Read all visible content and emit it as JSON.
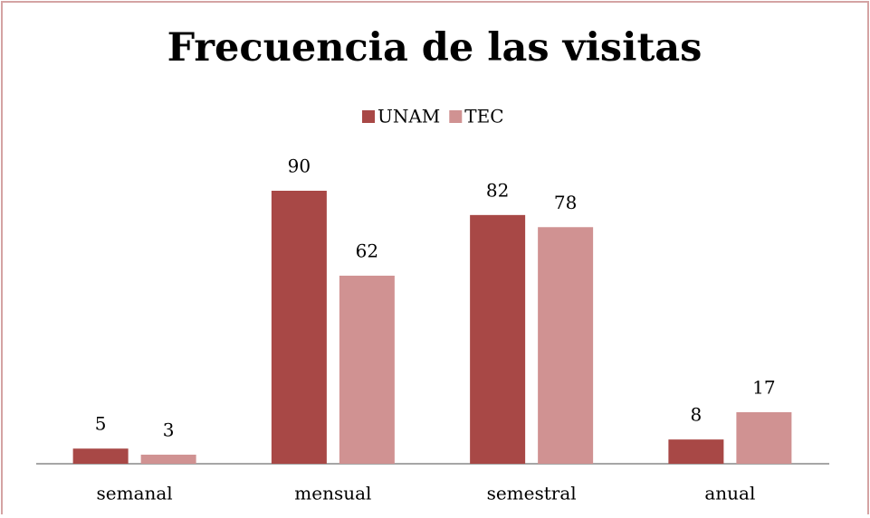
{
  "chart_data": {
    "type": "bar",
    "title": "Frecuencia de las visitas",
    "categories": [
      "semanal",
      "mensual",
      "semestral",
      "anual"
    ],
    "series": [
      {
        "name": "UNAM",
        "color": "#a84846",
        "values": [
          5,
          90,
          82,
          8
        ]
      },
      {
        "name": "TEC",
        "color": "#d09292",
        "values": [
          3,
          62,
          78,
          17
        ]
      }
    ],
    "legend": "top"
  }
}
